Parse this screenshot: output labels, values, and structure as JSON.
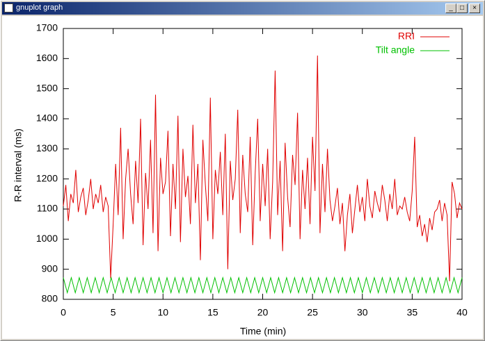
{
  "window": {
    "title": "gnuplot graph"
  },
  "chart_data": {
    "type": "line",
    "xlabel": "Time (min)",
    "ylabel": "R-R interval (ms)",
    "xlim": [
      0,
      40
    ],
    "ylim": [
      800,
      1700
    ],
    "xticks": [
      0,
      5,
      10,
      15,
      20,
      25,
      30,
      35,
      40
    ],
    "yticks": [
      800,
      900,
      1000,
      1100,
      1200,
      1300,
      1400,
      1500,
      1600,
      1700
    ],
    "legend": "top-right",
    "series": [
      {
        "name": "RRI",
        "color": "#e00000",
        "x": [
          0,
          0.25,
          0.5,
          0.75,
          1,
          1.25,
          1.5,
          1.75,
          2,
          2.25,
          2.5,
          2.75,
          3,
          3.25,
          3.5,
          3.75,
          4,
          4.25,
          4.5,
          4.75,
          5,
          5.25,
          5.5,
          5.75,
          6,
          6.25,
          6.5,
          6.75,
          7,
          7.25,
          7.5,
          7.75,
          8,
          8.25,
          8.5,
          8.75,
          9,
          9.25,
          9.5,
          9.75,
          10,
          10.25,
          10.5,
          10.75,
          11,
          11.25,
          11.5,
          11.75,
          12,
          12.25,
          12.5,
          12.75,
          13,
          13.25,
          13.5,
          13.75,
          14,
          14.25,
          14.5,
          14.75,
          15,
          15.25,
          15.5,
          15.75,
          16,
          16.25,
          16.5,
          16.75,
          17,
          17.25,
          17.5,
          17.75,
          18,
          18.25,
          18.5,
          18.75,
          19,
          19.25,
          19.5,
          19.75,
          20,
          20.25,
          20.5,
          20.75,
          21,
          21.25,
          21.5,
          21.75,
          22,
          22.25,
          22.5,
          22.75,
          23,
          23.25,
          23.5,
          23.75,
          24,
          24.25,
          24.5,
          24.75,
          25,
          25.25,
          25.5,
          25.75,
          26,
          26.25,
          26.5,
          26.75,
          27,
          27.25,
          27.5,
          27.75,
          28,
          28.25,
          28.5,
          28.75,
          29,
          29.25,
          29.5,
          29.75,
          30,
          30.25,
          30.5,
          30.75,
          31,
          31.25,
          31.5,
          31.75,
          32,
          32.25,
          32.5,
          32.75,
          33,
          33.25,
          33.5,
          33.75,
          34,
          34.25,
          34.5,
          34.75,
          35,
          35.25,
          35.5,
          35.75,
          36,
          36.25,
          36.5,
          36.75,
          37,
          37.25,
          37.5,
          37.75,
          38,
          38.25,
          38.5,
          38.75,
          39,
          39.25,
          39.5,
          39.75,
          40
        ],
        "values": [
          1110,
          1180,
          1060,
          1150,
          1120,
          1230,
          1090,
          1140,
          1170,
          1080,
          1130,
          1200,
          1100,
          1150,
          1120,
          1180,
          1090,
          1140,
          1110,
          870,
          1050,
          1250,
          1080,
          1370,
          1000,
          1200,
          1300,
          1150,
          1050,
          1260,
          1120,
          1400,
          980,
          1220,
          1100,
          1330,
          1020,
          1480,
          960,
          1270,
          1150,
          1190,
          1360,
          1010,
          1250,
          1100,
          1410,
          990,
          1300,
          1140,
          1210,
          1050,
          1380,
          1120,
          1250,
          930,
          1330,
          1180,
          1060,
          1470,
          1000,
          1230,
          1150,
          1290,
          1080,
          1350,
          900,
          1260,
          1130,
          1200,
          1430,
          1020,
          1280,
          1150,
          1090,
          1340,
          980,
          1220,
          1400,
          1060,
          1250,
          1110,
          1300,
          1000,
          1190,
          1560,
          1080,
          1260,
          960,
          1320,
          1140,
          1040,
          1280,
          1180,
          1420,
          1000,
          1230,
          1100,
          1270,
          1050,
          1340,
          1160,
          1610,
          1020,
          1250,
          1090,
          1300,
          1130,
          1060,
          1110,
          1170,
          1050,
          1120,
          960,
          1080,
          1150,
          1020,
          1100,
          1180,
          1090,
          1140,
          1060,
          1200,
          1110,
          1070,
          1160,
          1120,
          1090,
          1180,
          1130,
          1060,
          1150,
          1100,
          1200,
          1080,
          1110,
          1100,
          1140,
          1090,
          1060,
          1160,
          1340,
          1040,
          1080,
          1010,
          1050,
          990,
          1070,
          1030,
          1090,
          1100,
          1130,
          1060,
          1120,
          1080,
          860,
          1190,
          1150,
          1070,
          1120,
          1100
        ]
      },
      {
        "name": "Tilt angle",
        "color": "#00c000",
        "x": [
          0,
          0.4,
          0.8,
          1.2,
          1.6,
          2,
          2.4,
          2.8,
          3.2,
          3.6,
          4,
          4.4,
          4.8,
          5.2,
          5.6,
          6,
          6.4,
          6.8,
          7.2,
          7.6,
          8,
          8.4,
          8.8,
          9.2,
          9.6,
          10,
          10.4,
          10.8,
          11.2,
          11.6,
          12,
          12.4,
          12.8,
          13.2,
          13.6,
          14,
          14.4,
          14.8,
          15.2,
          15.6,
          16,
          16.4,
          16.8,
          17.2,
          17.6,
          18,
          18.4,
          18.8,
          19.2,
          19.6,
          20,
          20.4,
          20.8,
          21.2,
          21.6,
          22,
          22.4,
          22.8,
          23.2,
          23.6,
          24,
          24.4,
          24.8,
          25.2,
          25.6,
          26,
          26.4,
          26.8,
          27.2,
          27.6,
          28,
          28.4,
          28.8,
          29.2,
          29.6,
          30,
          30.4,
          30.8,
          31.2,
          31.6,
          32,
          32.4,
          32.8,
          33.2,
          33.6,
          34,
          34.4,
          34.8,
          35.2,
          35.6,
          36,
          36.4,
          36.8,
          37.2,
          37.6,
          38,
          38.4,
          38.8,
          39.2,
          39.6,
          40
        ],
        "values": [
          872,
          822,
          872,
          822,
          872,
          822,
          872,
          822,
          872,
          822,
          872,
          822,
          872,
          822,
          872,
          822,
          872,
          822,
          872,
          822,
          872,
          822,
          872,
          822,
          872,
          822,
          872,
          822,
          872,
          822,
          872,
          822,
          872,
          822,
          872,
          822,
          872,
          822,
          872,
          822,
          872,
          822,
          872,
          822,
          872,
          822,
          872,
          822,
          872,
          822,
          872,
          822,
          872,
          822,
          872,
          822,
          872,
          822,
          872,
          822,
          872,
          822,
          872,
          822,
          872,
          822,
          872,
          822,
          872,
          822,
          872,
          822,
          872,
          822,
          872,
          822,
          872,
          822,
          872,
          822,
          872,
          822,
          872,
          822,
          872,
          822,
          872,
          822,
          872,
          822,
          872,
          822,
          872,
          822,
          872,
          822,
          872,
          822,
          872,
          822,
          872
        ]
      }
    ]
  }
}
